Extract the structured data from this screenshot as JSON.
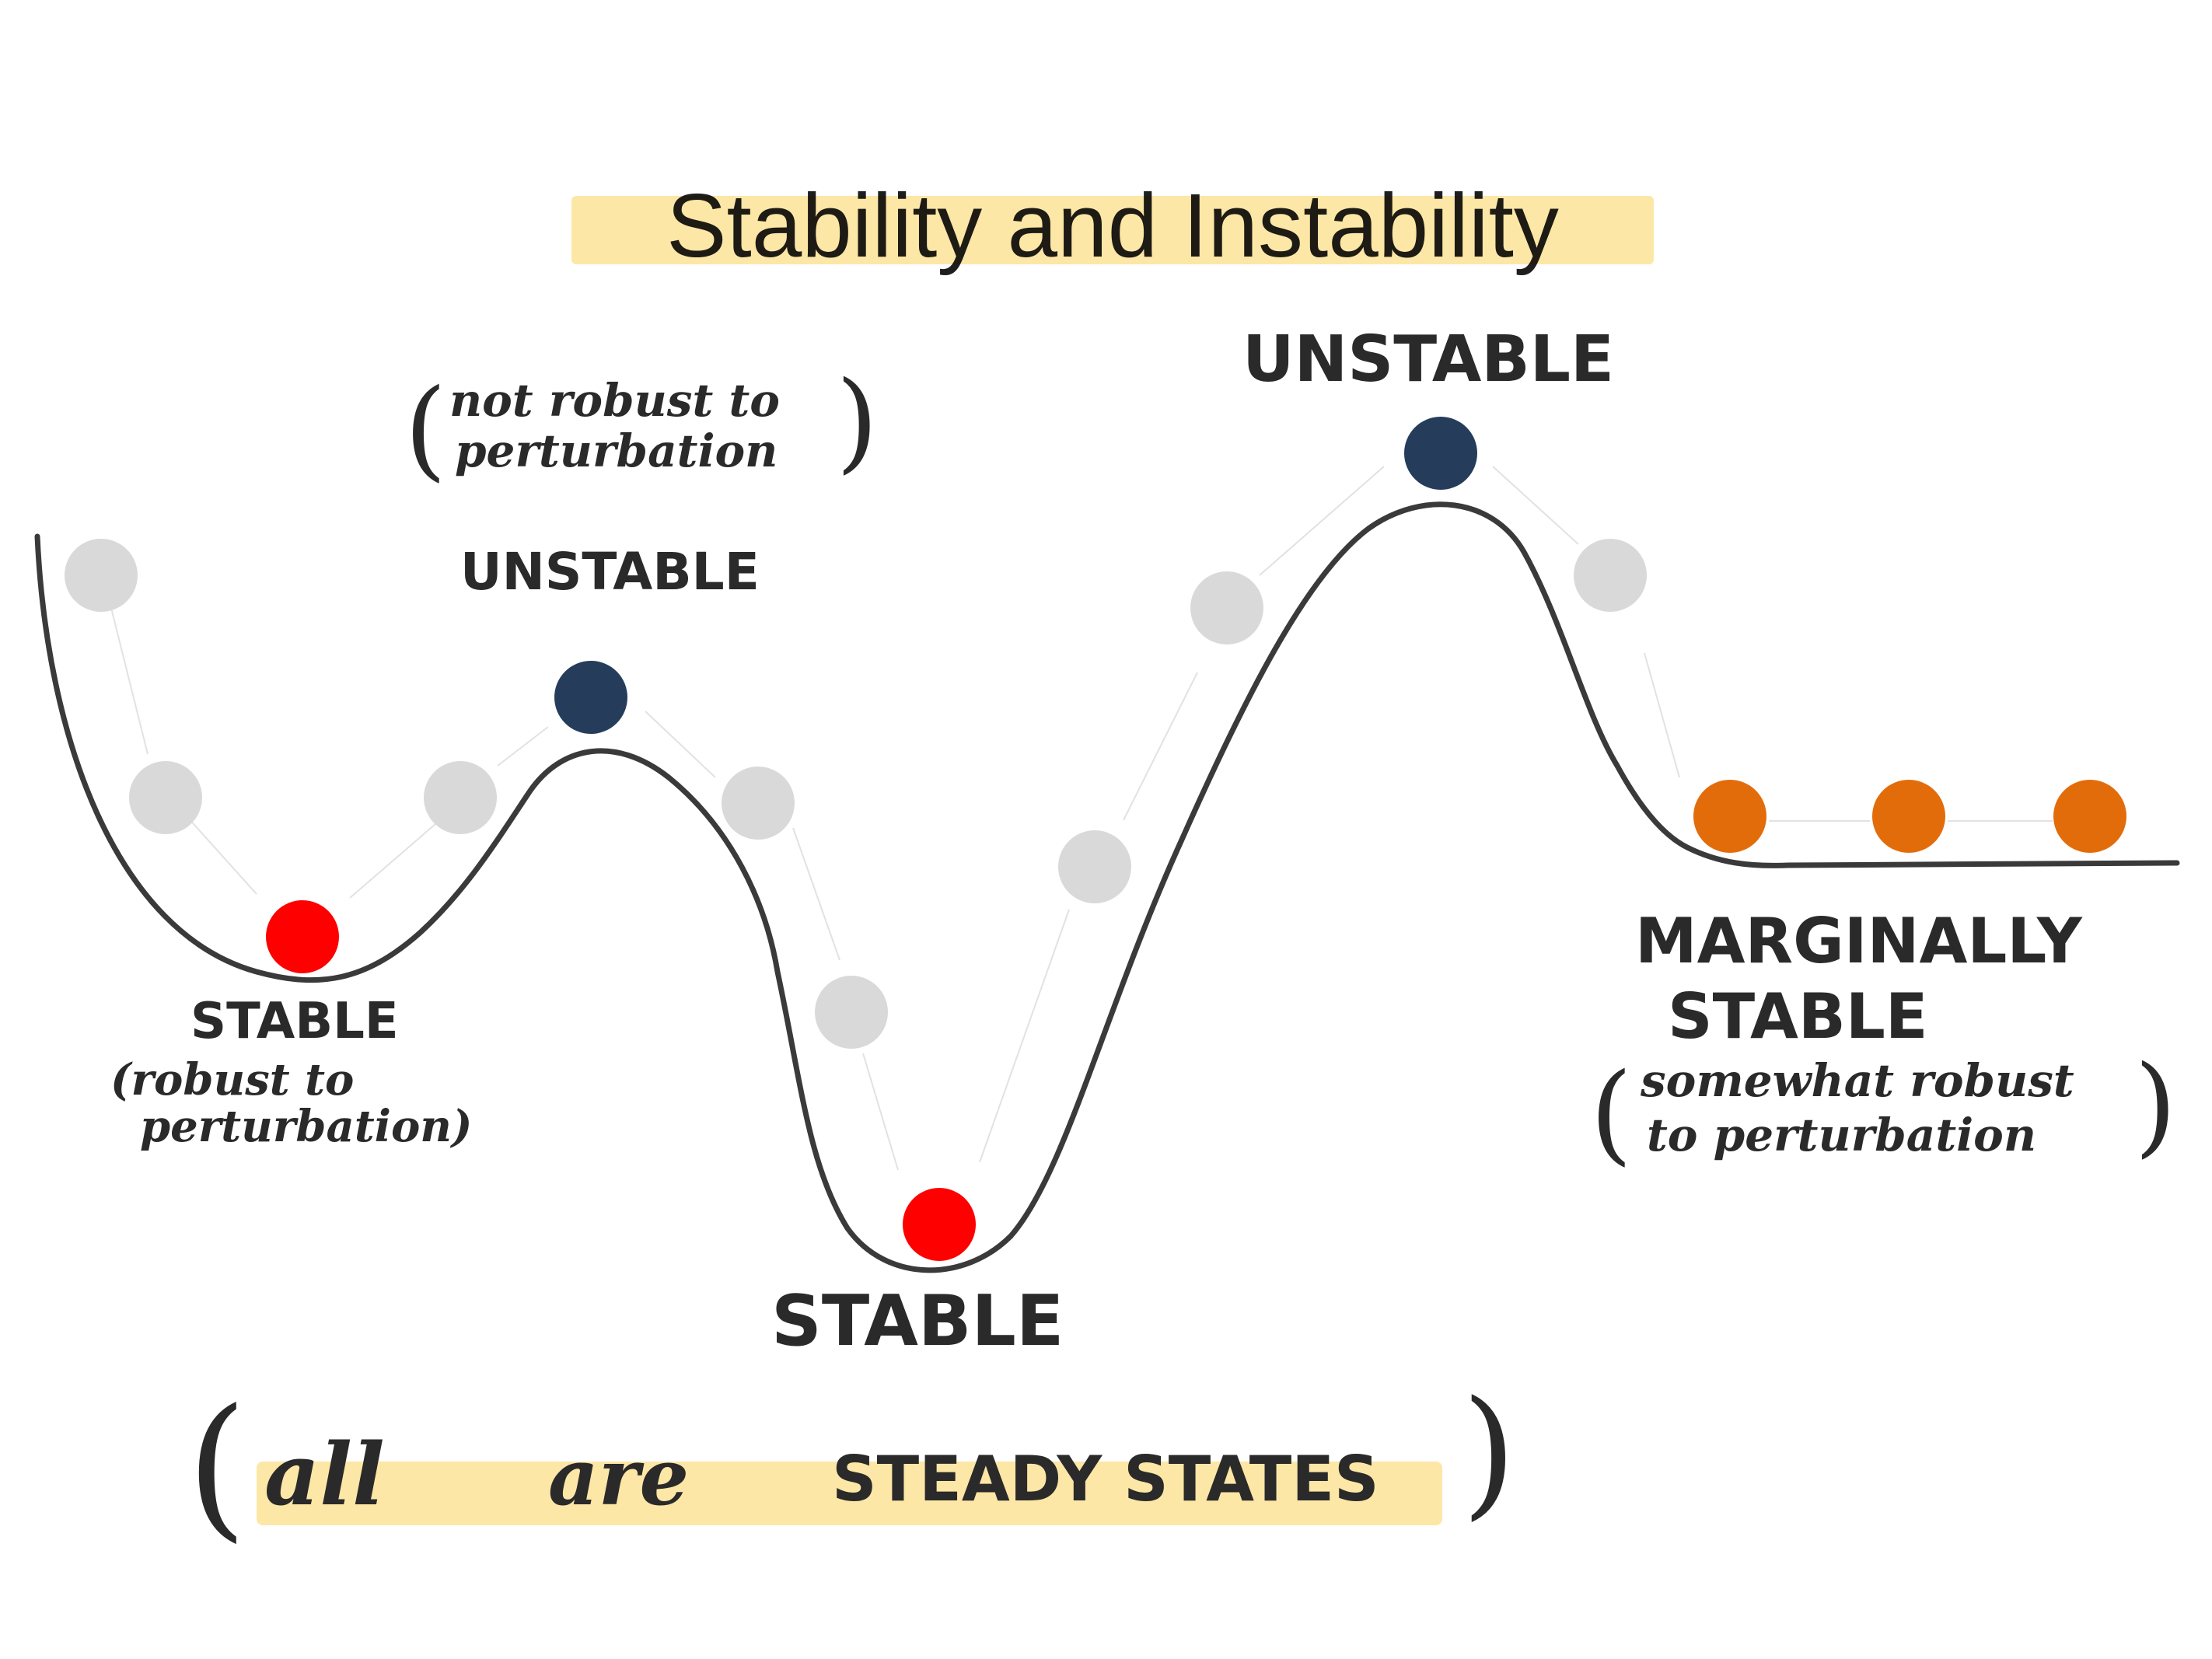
{
  "title": "Stability and Instability",
  "labels": {
    "stable_left": "STABLE",
    "stable_left_note_1": "(robust to",
    "stable_left_note_2": "perturbation)",
    "unstable_left": "UNSTABLE",
    "unstable_left_note_1": "not robust to",
    "unstable_left_note_2": "perturbation",
    "stable_center": "STABLE",
    "unstable_right": "UNSTABLE",
    "marginal_1": "MARGINALLY",
    "marginal_2": "STABLE",
    "marginal_note_1": "somewhat robust",
    "marginal_note_2": "to perturbation",
    "footer_1": "all",
    "footer_2": "are",
    "footer_3": "STEADY STATES"
  },
  "colors": {
    "stable": "#ff0000",
    "unstable": "#253d5b",
    "marginal": "#e36c0a",
    "perturbed": "#d9d9d9",
    "highlight": "#fde7a6",
    "curve": "#3a3a3a"
  },
  "icons": {
    "paren_open": "(",
    "paren_close": ")"
  }
}
